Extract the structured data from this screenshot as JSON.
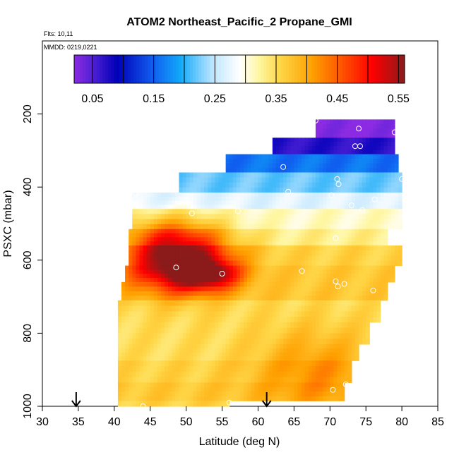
{
  "chart_data": {
    "type": "heatmap",
    "title": "ATOM2 Northeast_Pacific_2 Propane_GMI",
    "flights_label": "Flts: 10,11",
    "mmdd_label": "MMDD: 0219,0221",
    "xlabel": "Latitude (deg N)",
    "ylabel": "PSXC (mbar)",
    "xlim": [
      30,
      85
    ],
    "ylim": [
      1000,
      0
    ],
    "x_ticks": [
      "30",
      "35",
      "40",
      "45",
      "50",
      "55",
      "60",
      "65",
      "70",
      "75",
      "80",
      "85"
    ],
    "y_ticks": [
      "200",
      "400",
      "600",
      "800",
      "1000"
    ],
    "colorbar": {
      "min": 0.02,
      "max": 0.56,
      "tick_labels": [
        "0.05",
        "0.15",
        "0.25",
        "0.35",
        "0.45",
        "0.55"
      ]
    },
    "arrows_latitude": [
      34.7,
      61.2
    ],
    "layers": [
      {
        "pmin": 215,
        "pmax": 265,
        "lat_min": 68,
        "lat_max": 79,
        "base": 0.02
      },
      {
        "pmin": 265,
        "pmax": 310,
        "lat_min": 62,
        "lat_max": 79,
        "base": 0.07
      },
      {
        "pmin": 310,
        "pmax": 360,
        "lat_min": 55.5,
        "lat_max": 79.5,
        "base": 0.16
      },
      {
        "pmin": 360,
        "pmax": 415,
        "lat_min": 49,
        "lat_max": 80,
        "base": 0.22
      },
      {
        "pmin": 415,
        "pmax": 460,
        "lat_min": 42.5,
        "lat_max": 80,
        "base": 0.27
      },
      {
        "pmin": 460,
        "pmax": 515,
        "lat_min": 42.5,
        "lat_max": 80,
        "base": 0.31
      },
      {
        "pmin": 515,
        "pmax": 560,
        "lat_min": 42,
        "lat_max": 78,
        "base": 0.33
      },
      {
        "pmin": 560,
        "pmax": 615,
        "lat_min": 42,
        "lat_max": 80,
        "base": 0.36
      },
      {
        "pmin": 615,
        "pmax": 660,
        "lat_min": 41.5,
        "lat_max": 79,
        "base": 0.37
      },
      {
        "pmin": 660,
        "pmax": 710,
        "lat_min": 41,
        "lat_max": 78,
        "base": 0.37
      },
      {
        "pmin": 710,
        "pmax": 770,
        "lat_min": 40.5,
        "lat_max": 77,
        "base": 0.35
      },
      {
        "pmin": 770,
        "pmax": 830,
        "lat_min": 40.5,
        "lat_max": 75.5,
        "base": 0.35
      },
      {
        "pmin": 830,
        "pmax": 875,
        "lat_min": 40.5,
        "lat_max": 74,
        "base": 0.35
      },
      {
        "pmin": 875,
        "pmax": 935,
        "lat_min": 40.5,
        "lat_max": 73,
        "base": 0.36
      },
      {
        "pmin": 935,
        "pmax": 985,
        "lat_min": 40.5,
        "lat_max": 72,
        "base": 0.37
      },
      {
        "pmin": 985,
        "pmax": 1000,
        "lat_min": 40.5,
        "lat_max": 56,
        "base": 0.36
      }
    ],
    "plumes": [
      {
        "lat": 49,
        "p": 610,
        "amp": 0.21,
        "slat": 5,
        "sp": 55
      },
      {
        "lat": 53,
        "p": 640,
        "amp": 0.13,
        "slat": 3,
        "sp": 28
      },
      {
        "lat": 48,
        "p": 530,
        "amp": 0.09,
        "slat": 5,
        "sp": 40
      },
      {
        "lat": 68,
        "p": 900,
        "amp": 0.06,
        "slat": 6,
        "sp": 80
      }
    ],
    "sample_points": [
      {
        "lat": 68,
        "p": 218
      },
      {
        "lat": 74,
        "p": 240
      },
      {
        "lat": 79,
        "p": 250
      },
      {
        "lat": 73.5,
        "p": 288
      },
      {
        "lat": 74.2,
        "p": 288
      },
      {
        "lat": 63.5,
        "p": 345
      },
      {
        "lat": 71,
        "p": 378
      },
      {
        "lat": 80,
        "p": 378
      },
      {
        "lat": 71.2,
        "p": 392
      },
      {
        "lat": 43,
        "p": 418
      },
      {
        "lat": 64.2,
        "p": 413
      },
      {
        "lat": 70.2,
        "p": 422
      },
      {
        "lat": 76.2,
        "p": 434
      },
      {
        "lat": 73,
        "p": 450
      },
      {
        "lat": 74.5,
        "p": 463
      },
      {
        "lat": 57.2,
        "p": 466
      },
      {
        "lat": 50.8,
        "p": 472
      },
      {
        "lat": 70.8,
        "p": 540
      },
      {
        "lat": 48.6,
        "p": 620
      },
      {
        "lat": 55,
        "p": 637
      },
      {
        "lat": 66.1,
        "p": 630
      },
      {
        "lat": 70.8,
        "p": 658
      },
      {
        "lat": 72,
        "p": 665
      },
      {
        "lat": 71.1,
        "p": 672
      },
      {
        "lat": 76,
        "p": 683
      },
      {
        "lat": 72.2,
        "p": 940
      },
      {
        "lat": 70.4,
        "p": 955
      },
      {
        "lat": 44,
        "p": 1000
      },
      {
        "lat": 56,
        "p": 990
      }
    ]
  }
}
